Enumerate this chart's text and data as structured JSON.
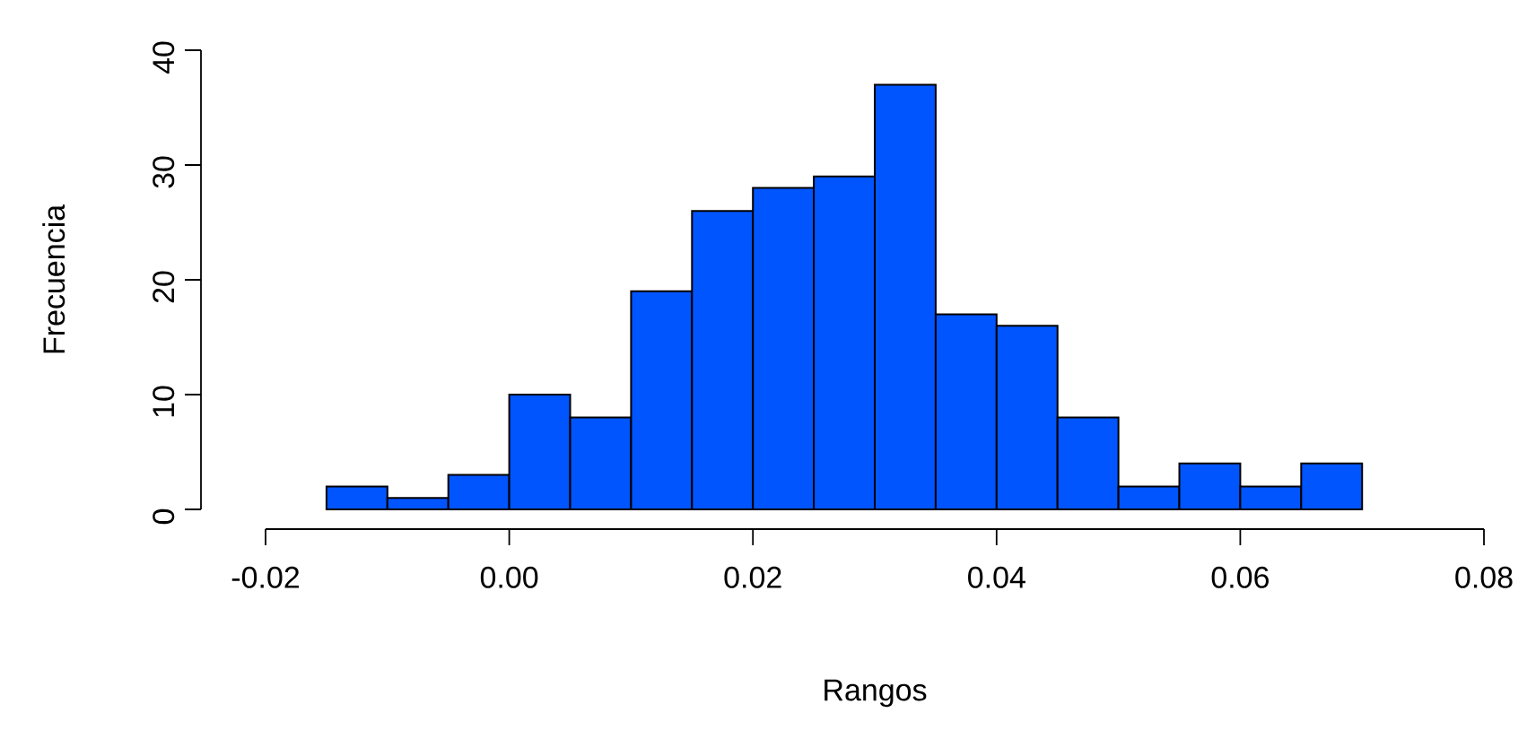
{
  "chart_data": {
    "type": "histogram",
    "xlabel": "Rangos",
    "ylabel": "Frecuencia",
    "bins": [
      -0.015,
      -0.01,
      -0.005,
      0.0,
      0.005,
      0.01,
      0.015,
      0.02,
      0.025,
      0.03,
      0.035,
      0.04,
      0.045,
      0.05,
      0.055,
      0.06,
      0.065,
      0.07
    ],
    "values": [
      2,
      1,
      3,
      10,
      8,
      19,
      26,
      28,
      29,
      37,
      17,
      16,
      8,
      2,
      4,
      2,
      4
    ],
    "color": "#0055ff",
    "xlim": [
      -0.02,
      0.08
    ],
    "ylim": [
      0,
      40
    ],
    "xticks": [
      {
        "value": -0.02,
        "label": "-0.02"
      },
      {
        "value": 0.0,
        "label": "0.00"
      },
      {
        "value": 0.02,
        "label": "0.02"
      },
      {
        "value": 0.04,
        "label": "0.04"
      },
      {
        "value": 0.06,
        "label": "0.06"
      },
      {
        "value": 0.08,
        "label": "0.08"
      }
    ],
    "yticks": [
      0,
      10,
      20,
      30,
      40
    ],
    "grid": false
  }
}
